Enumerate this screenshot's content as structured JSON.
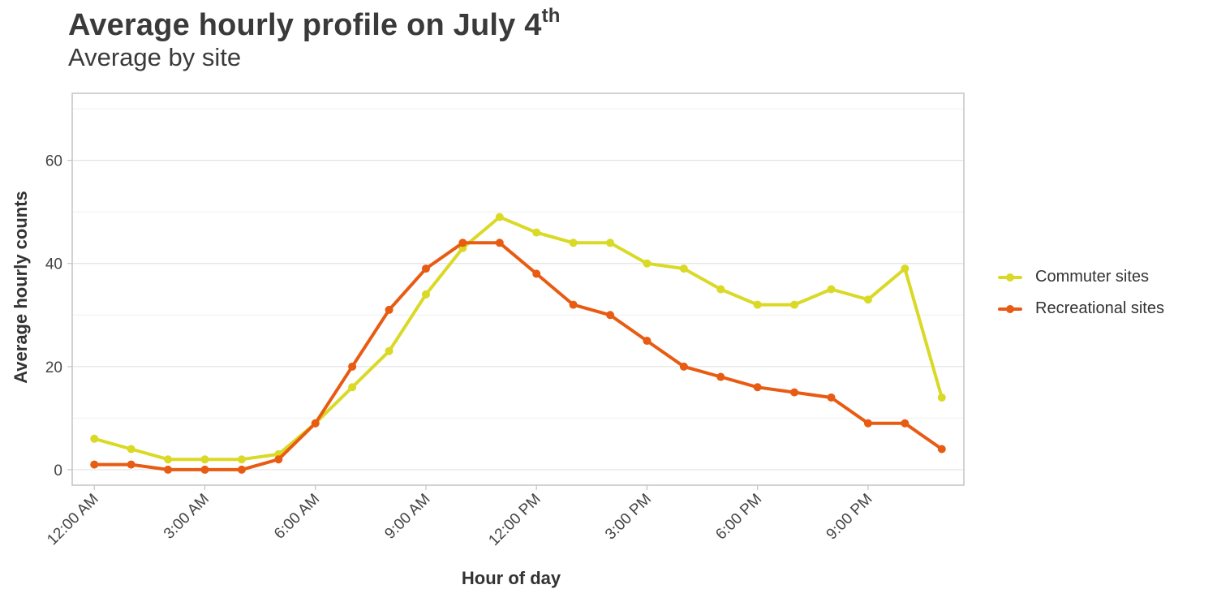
{
  "title": "Average hourly profile on July 4",
  "title_sup": "th",
  "subtitle": "Average by site",
  "chart_data": {
    "type": "line",
    "x": [
      0,
      1,
      2,
      3,
      4,
      5,
      6,
      7,
      8,
      9,
      10,
      11,
      12,
      13,
      14,
      15,
      16,
      17,
      18,
      19,
      20,
      21,
      22,
      23
    ],
    "xlabel": "Hour of day",
    "ylabel": "Average hourly counts",
    "xticks": [
      0,
      3,
      6,
      9,
      12,
      15,
      18,
      21
    ],
    "xtick_labels": [
      "12:00 AM",
      "3:00 AM",
      "6:00 AM",
      "9:00 AM",
      "12:00 PM",
      "3:00 PM",
      "6:00 PM",
      "9:00 PM"
    ],
    "yticks": [
      0,
      20,
      40,
      60
    ],
    "ylim": [
      -3,
      73
    ],
    "xlim": [
      -0.6,
      23.6
    ],
    "grid": true,
    "legend_position": "right",
    "series": [
      {
        "name": "Commuter sites",
        "color": "#d9d926",
        "values": [
          6,
          4,
          2,
          2,
          2,
          3,
          9,
          16,
          23,
          34,
          43,
          49,
          46,
          44,
          44,
          40,
          39,
          35,
          32,
          32,
          35,
          33,
          39,
          14
        ]
      },
      {
        "name": "Recreational sites",
        "color": "#e85b12",
        "values": [
          1,
          1,
          0,
          0,
          0,
          2,
          9,
          20,
          31,
          39,
          44,
          44,
          38,
          32,
          30,
          25,
          20,
          18,
          16,
          15,
          14,
          9,
          9,
          4
        ]
      }
    ]
  }
}
